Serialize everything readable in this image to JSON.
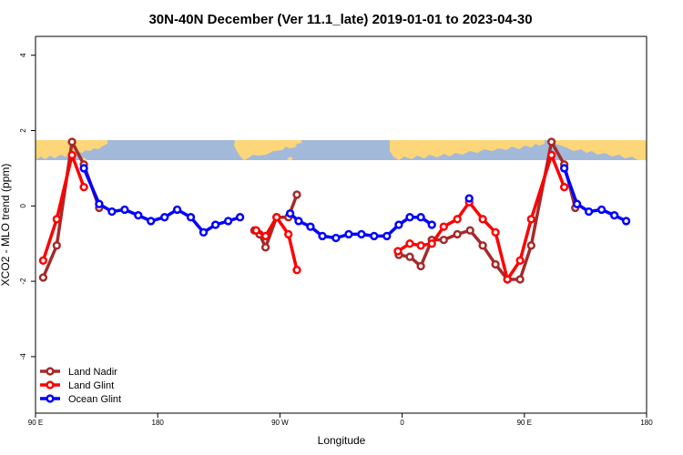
{
  "chart_data": {
    "type": "line",
    "title": "30N-40N December (Ver 11.1_late)   2019-01-01 to 2023-04-30",
    "xlabel": "Longitude",
    "ylabel": "XCO2 - MLO trend (ppm)",
    "xlim": [
      90,
      450
    ],
    "ylim": [
      -5.5,
      4.5
    ],
    "xticks": [
      {
        "value": 90,
        "label": "90 E"
      },
      {
        "value": 162,
        "label": "180"
      },
      {
        "value": 234,
        "label": "90 W"
      },
      {
        "value": 306,
        "label": "0"
      },
      {
        "value": 378,
        "label": "90 E"
      },
      {
        "value": 450,
        "label": "180"
      }
    ],
    "yticks": [
      {
        "value": 4,
        "label": "4"
      },
      {
        "value": 2,
        "label": "2"
      },
      {
        "value": 0,
        "label": "0"
      },
      {
        "value": -2,
        "label": "-2"
      },
      {
        "value": -4,
        "label": "-4"
      }
    ],
    "map_band": {
      "y_range": [
        1.2,
        1.8
      ],
      "ocean_color": "#a3b9d9",
      "land_color": "#fdd67a"
    },
    "legend": {
      "position": "bottom-left"
    },
    "series": [
      {
        "name": "Land Nadir",
        "color": "#a52a2a",
        "segments": [
          [
            [
              94.5,
              -1.9
            ],
            [
              102.5,
              -1.05
            ],
            [
              111.5,
              1.7
            ],
            [
              118.5,
              1.1
            ],
            [
              127.5,
              -0.05
            ]
          ],
          [
            [
              219,
              -0.65
            ],
            [
              222,
              -0.75
            ],
            [
              225.5,
              -1.1
            ],
            [
              232,
              -0.3
            ],
            [
              239,
              -0.3
            ],
            [
              244,
              0.3
            ]
          ],
          [
            [
              304,
              -1.3
            ],
            [
              310.5,
              -1.35
            ],
            [
              317,
              -1.6
            ],
            [
              323.5,
              -0.9
            ],
            [
              330.5,
              -0.9
            ],
            [
              338.5,
              -0.75
            ],
            [
              346,
              -0.65
            ],
            [
              353.5,
              -1.05
            ],
            [
              361,
              -1.55
            ],
            [
              368,
              -1.95
            ],
            [
              375.5,
              -1.95
            ],
            [
              382,
              -1.05
            ],
            [
              394,
              1.7
            ],
            [
              401.5,
              1.1
            ],
            [
              408,
              -0.05
            ]
          ]
        ]
      },
      {
        "name": "Land Glint",
        "color": "#ff0000",
        "segments": [
          [
            [
              94.5,
              -1.45
            ],
            [
              102.5,
              -0.35
            ],
            [
              111.5,
              1.35
            ],
            [
              118.5,
              0.5
            ]
          ],
          [
            [
              220,
              -0.65
            ],
            [
              225.5,
              -0.8
            ],
            [
              232,
              -0.3
            ],
            [
              239,
              -0.75
            ],
            [
              244,
              -1.7
            ]
          ],
          [
            [
              303.5,
              -1.2
            ],
            [
              310.5,
              -1.0
            ],
            [
              317,
              -1.05
            ],
            [
              323.5,
              -1.0
            ],
            [
              330.5,
              -0.55
            ],
            [
              338.5,
              -0.35
            ],
            [
              345.5,
              0.1
            ],
            [
              353.5,
              -0.35
            ],
            [
              361,
              -0.7
            ],
            [
              368,
              -1.95
            ],
            [
              375.5,
              -1.45
            ],
            [
              382,
              -0.35
            ],
            [
              394,
              1.35
            ],
            [
              401.5,
              0.5
            ]
          ]
        ]
      },
      {
        "name": "Ocean Glint",
        "color": "#0000ff",
        "segments": [
          [
            [
              118.5,
              1.0
            ],
            [
              127.5,
              0.05
            ],
            [
              135,
              -0.15
            ],
            [
              142.5,
              -0.1
            ],
            [
              150.5,
              -0.25
            ],
            [
              158,
              -0.4
            ],
            [
              166,
              -0.3
            ],
            [
              173.5,
              -0.1
            ],
            [
              181.5,
              -0.3
            ],
            [
              189,
              -0.7
            ],
            [
              196,
              -0.5
            ],
            [
              203.5,
              -0.4
            ],
            [
              210.5,
              -0.3
            ]
          ],
          [
            [
              240,
              -0.2
            ],
            [
              245,
              -0.4
            ],
            [
              252,
              -0.55
            ],
            [
              259,
              -0.8
            ],
            [
              267,
              -0.85
            ],
            [
              274.5,
              -0.75
            ],
            [
              282,
              -0.75
            ],
            [
              289.5,
              -0.8
            ],
            [
              297,
              -0.8
            ],
            [
              304,
              -0.5
            ],
            [
              310.5,
              -0.3
            ],
            [
              317,
              -0.3
            ],
            [
              323.5,
              -0.5
            ]
          ],
          [
            [
              345.5,
              0.2
            ]
          ],
          [
            [
              401.5,
              1.0
            ],
            [
              409,
              0.05
            ],
            [
              416,
              -0.15
            ],
            [
              423.5,
              -0.1
            ],
            [
              431,
              -0.25
            ],
            [
              438,
              -0.4
            ]
          ]
        ]
      }
    ]
  }
}
